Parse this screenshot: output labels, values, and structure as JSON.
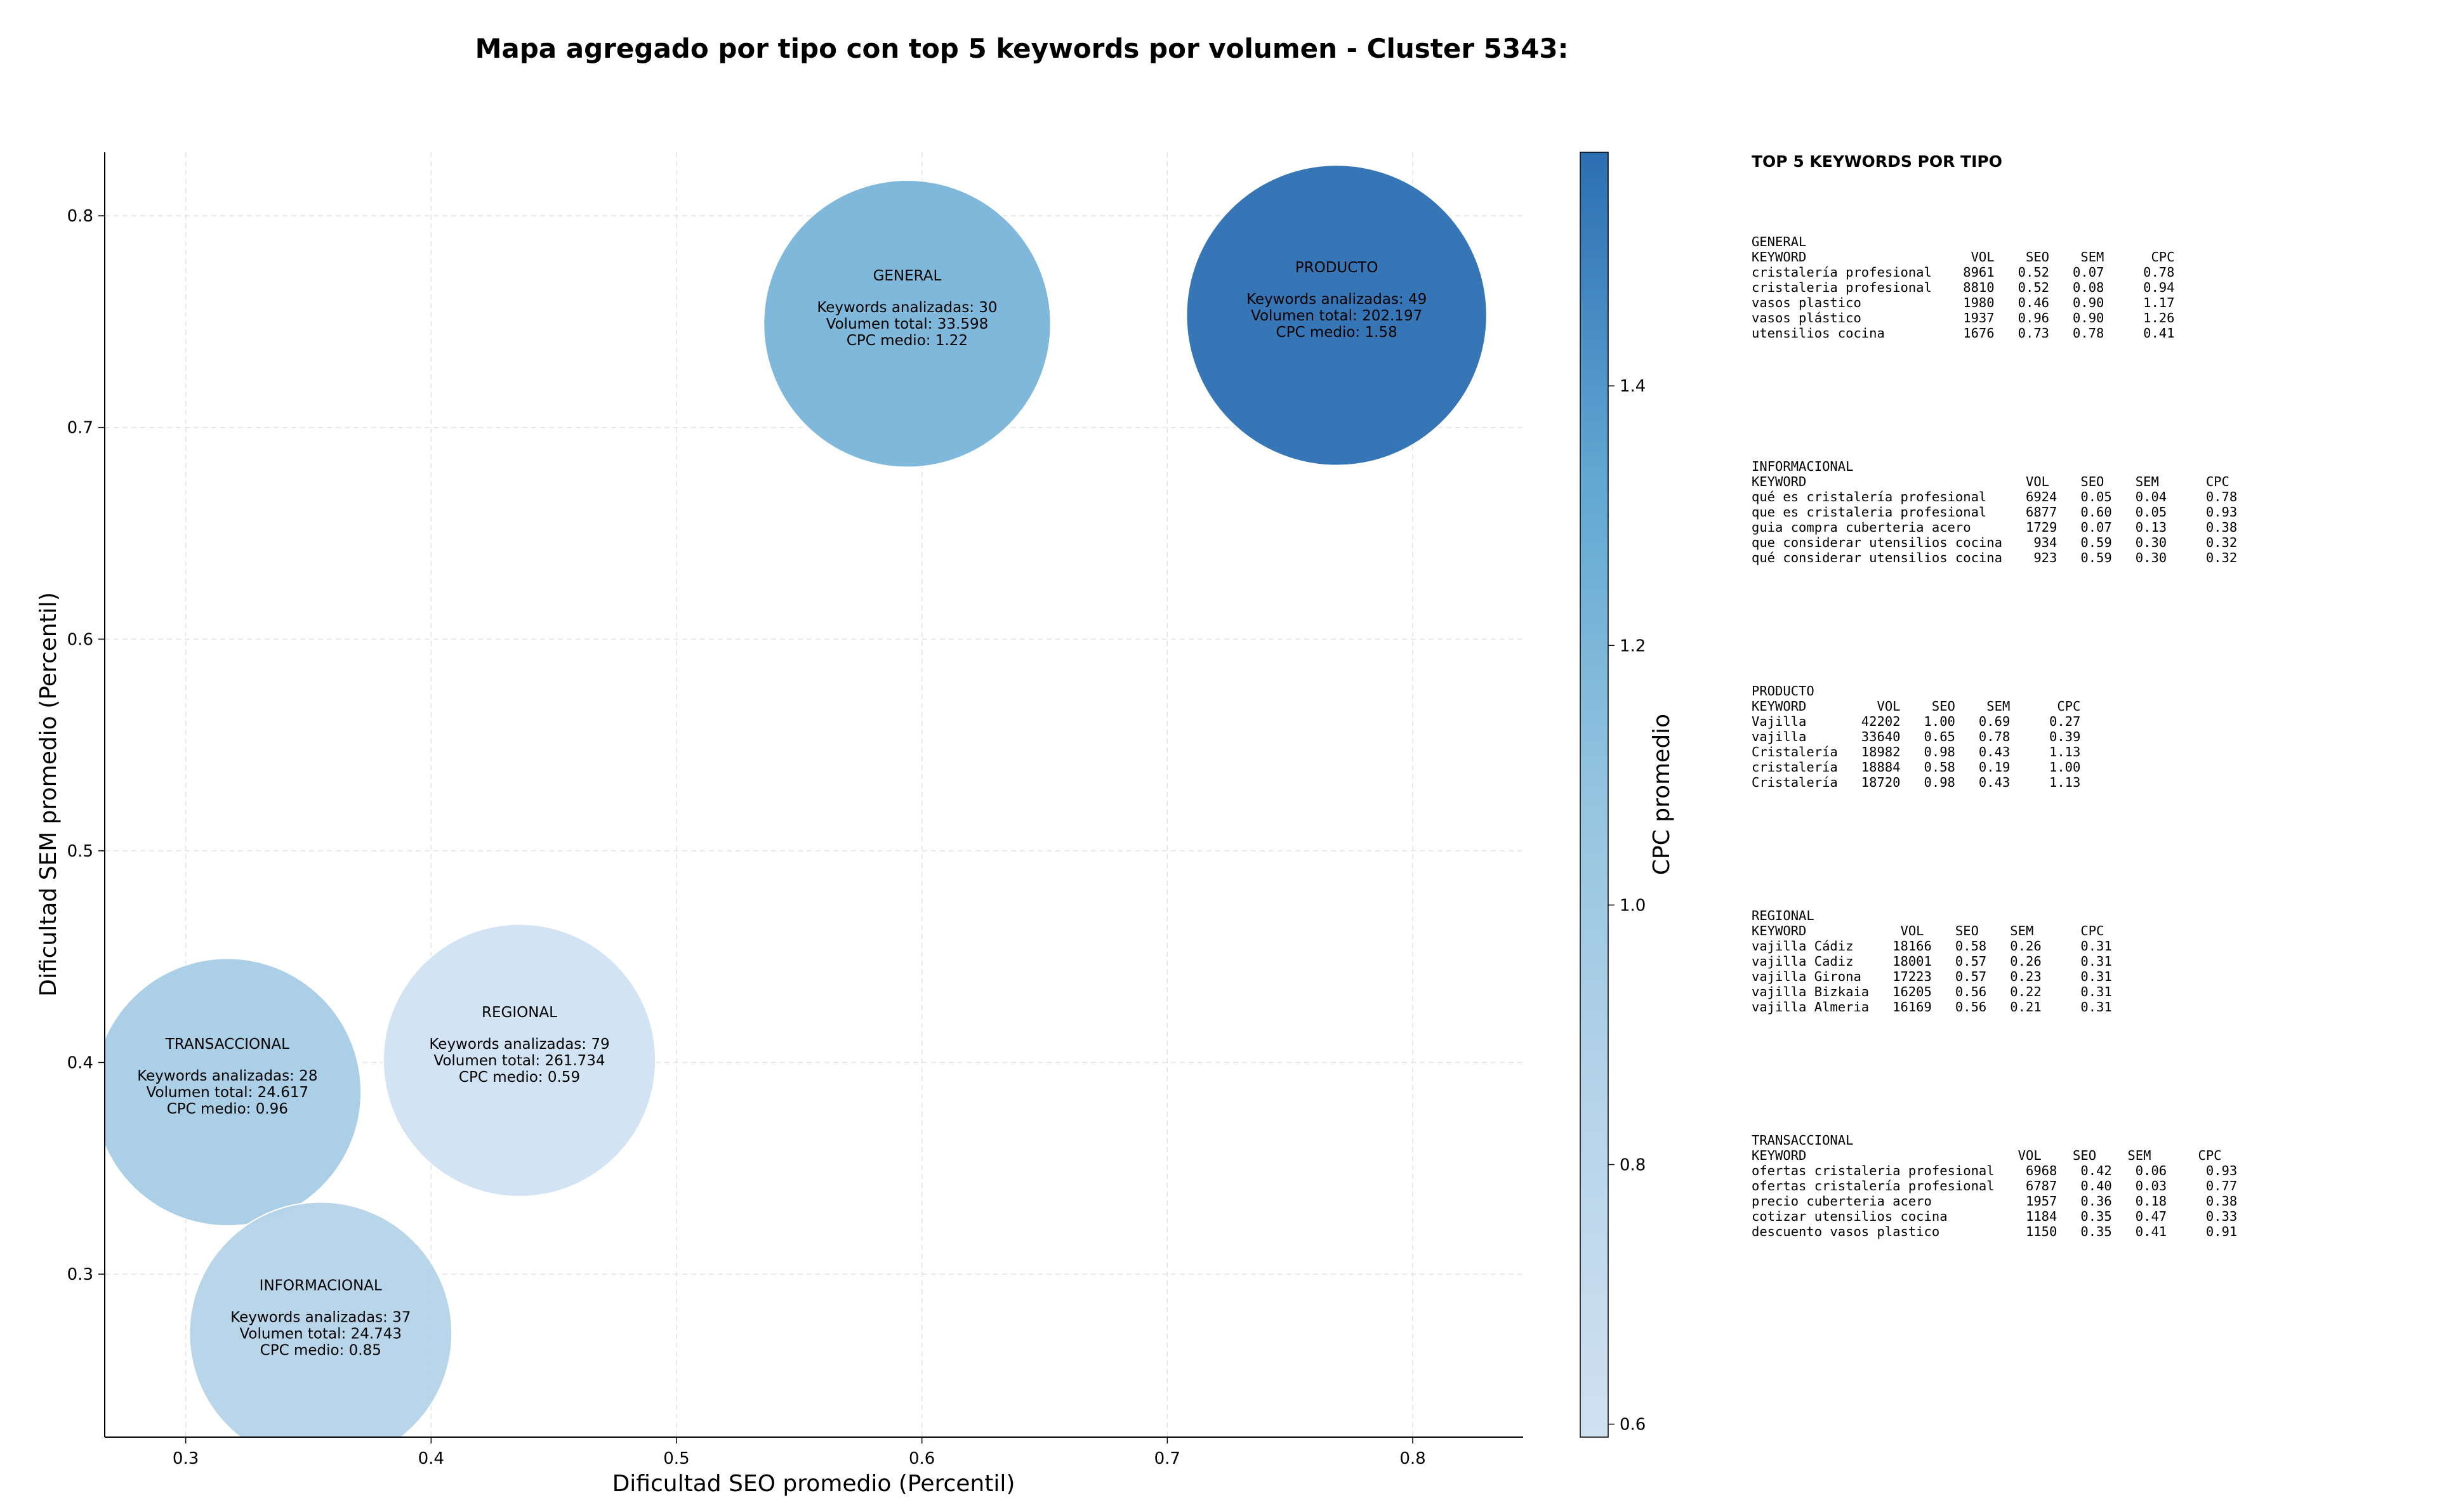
{
  "chart_data": {
    "type": "scatter",
    "title": "Mapa agregado por tipo con top 5 keywords por volumen - Cluster 5343:",
    "xlabel": "Dificultad SEO promedio (Percentil)",
    "ylabel": "Dificultad SEM promedio (Percentil)",
    "xlim": [
      0.267,
      0.845
    ],
    "ylim": [
      0.223,
      0.83
    ],
    "x_ticks": [
      "0.3",
      "0.4",
      "0.5",
      "0.6",
      "0.7",
      "0.8"
    ],
    "y_ticks": [
      "0.3",
      "0.4",
      "0.5",
      "0.6",
      "0.7",
      "0.8"
    ],
    "grid": true,
    "colorbar": {
      "label": "CPC promedio",
      "range": [
        0.59,
        1.58
      ],
      "ticks": [
        "0.6",
        "0.8",
        "1.0",
        "1.2",
        "1.4"
      ],
      "color_low": "#d0e1f2",
      "color_high": "#2b6fb2"
    },
    "bubbles": [
      {
        "name": "GENERAL",
        "x": 0.594,
        "y": 0.749,
        "radius_units": 0.0585,
        "keywords_label": "Keywords analizadas: 30",
        "volume_label": "Volumen total: 33.598",
        "cpc_label": "CPC medio: 1.22",
        "cpc": 1.22
      },
      {
        "name": "PRODUCTO",
        "x": 0.769,
        "y": 0.753,
        "radius_units": 0.0612,
        "keywords_label": "Keywords analizadas: 49",
        "volume_label": "Volumen total: 202.197",
        "cpc_label": "CPC medio: 1.58",
        "cpc": 1.58
      },
      {
        "name": "REGIONAL",
        "x": 0.436,
        "y": 0.401,
        "radius_units": 0.0555,
        "keywords_label": "Keywords analizadas: 79",
        "volume_label": "Volumen total: 261.734",
        "cpc_label": "CPC medio: 0.59",
        "cpc": 0.59
      },
      {
        "name": "TRANSACCIONAL",
        "x": 0.317,
        "y": 0.386,
        "radius_units": 0.0545,
        "keywords_label": "Keywords analizadas: 28",
        "volume_label": "Volumen total: 24.617",
        "cpc_label": "CPC medio: 0.96",
        "cpc": 0.96
      },
      {
        "name": "INFORMACIONAL",
        "x": 0.355,
        "y": 0.272,
        "radius_units": 0.0535,
        "keywords_label": "Keywords analizadas: 37",
        "volume_label": "Volumen total: 24.743",
        "cpc_label": "CPC medio: 0.85",
        "cpc": 0.85
      }
    ]
  },
  "panel": {
    "title": "TOP 5 KEYWORDS POR TIPO",
    "sections": [
      {
        "name": "GENERAL",
        "lines": [
          "KEYWORD                     VOL    SEO    SEM      CPC",
          "cristalería profesional    8961   0.52   0.07     0.78",
          "cristaleria profesional    8810   0.52   0.08     0.94",
          "vasos plastico             1980   0.46   0.90     1.17",
          "vasos plástico             1937   0.96   0.90     1.26",
          "utensilios cocina          1676   0.73   0.78     0.41"
        ]
      },
      {
        "name": "INFORMACIONAL",
        "lines": [
          "KEYWORD                            VOL    SEO    SEM      CPC",
          "qué es cristalería profesional     6924   0.05   0.04     0.78",
          "que es cristaleria profesional     6877   0.60   0.05     0.93",
          "guia compra cuberteria acero       1729   0.07   0.13     0.38",
          "que considerar utensilios cocina    934   0.59   0.30     0.32",
          "qué considerar utensilios cocina    923   0.59   0.30     0.32"
        ]
      },
      {
        "name": "PRODUCTO",
        "lines": [
          "KEYWORD         VOL    SEO    SEM      CPC",
          "Vajilla       42202   1.00   0.69     0.27",
          "vajilla       33640   0.65   0.78     0.39",
          "Cristalería   18982   0.98   0.43     1.13",
          "cristalería   18884   0.58   0.19     1.00",
          "Cristalería   18720   0.98   0.43     1.13"
        ]
      },
      {
        "name": "REGIONAL",
        "lines": [
          "KEYWORD            VOL    SEO    SEM      CPC",
          "vajilla Cádiz     18166   0.58   0.26     0.31",
          "vajilla Cadiz     18001   0.57   0.26     0.31",
          "vajilla Girona    17223   0.57   0.23     0.31",
          "vajilla Bizkaia   16205   0.56   0.22     0.31",
          "vajilla Almeria   16169   0.56   0.21     0.31"
        ]
      },
      {
        "name": "TRANSACCIONAL",
        "lines": [
          "KEYWORD                           VOL    SEO    SEM      CPC",
          "ofertas cristaleria profesional    6968   0.42   0.06     0.93",
          "ofertas cristalería profesional    6787   0.40   0.03     0.77",
          "precio cuberteria acero            1957   0.36   0.18     0.38",
          "cotizar utensilios cocina          1184   0.35   0.47     0.33",
          "descuento vasos plastico           1150   0.35   0.41     0.91"
        ]
      }
    ]
  }
}
